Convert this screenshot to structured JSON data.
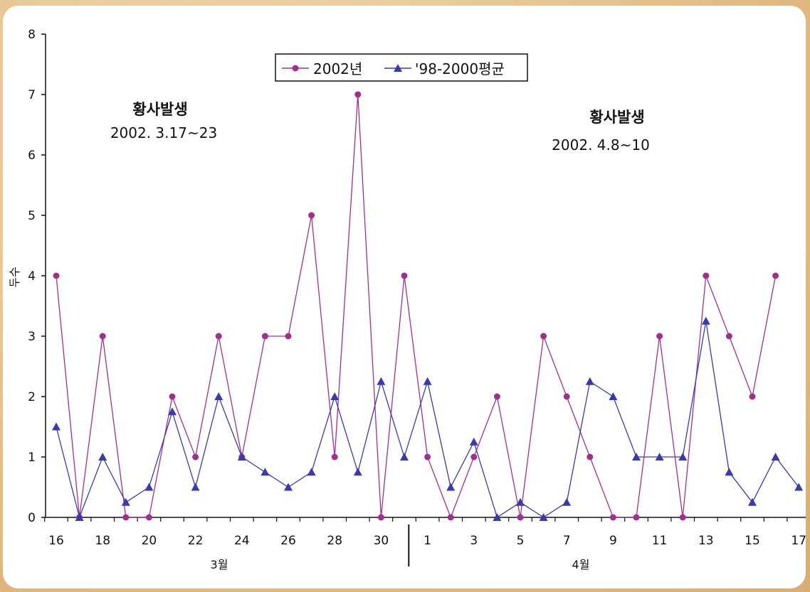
{
  "chart_data": {
    "type": "line",
    "ylabel": "두수",
    "ylim": [
      0,
      8
    ],
    "yticks": [
      "0",
      "1",
      "2",
      "3",
      "4",
      "5",
      "6",
      "7",
      "8"
    ],
    "x_tick_labels": [
      "16",
      "18",
      "20",
      "22",
      "24",
      "26",
      "28",
      "30",
      "1",
      "3",
      "5",
      "7",
      "9",
      "11",
      "13",
      "15",
      "17"
    ],
    "x_days": [
      "16",
      "17",
      "18",
      "19",
      "20",
      "21",
      "22",
      "23",
      "24",
      "25",
      "26",
      "27",
      "28",
      "29",
      "30",
      "31",
      "1",
      "2",
      "3",
      "4",
      "5",
      "6",
      "7",
      "8",
      "9",
      "10",
      "11",
      "12",
      "13",
      "14",
      "15",
      "16",
      "17"
    ],
    "month_labels": [
      "3월",
      "4월"
    ],
    "month_split_after_index": 15,
    "series": [
      {
        "name": "2002년",
        "color": "#a0308e",
        "marker": "circle",
        "values": [
          4,
          0,
          3,
          0,
          0,
          2,
          1,
          3,
          1,
          3,
          3,
          5,
          1,
          7,
          0,
          4,
          1,
          0,
          1,
          2,
          0,
          3,
          2,
          1,
          0,
          0,
          3,
          0,
          4,
          3,
          2,
          4,
          null
        ]
      },
      {
        "name": "'98-2000평균",
        "color": "#3a3ab0",
        "marker": "triangle",
        "values": [
          1.5,
          0,
          1,
          0.25,
          0.5,
          1.75,
          0.5,
          2,
          1,
          0.75,
          0.5,
          0.75,
          2,
          0.75,
          2.25,
          1,
          2.25,
          0.5,
          1.25,
          0,
          0.25,
          0,
          0.25,
          2.25,
          2,
          1,
          1,
          1,
          3.25,
          0.75,
          0.25,
          1,
          0.5
        ]
      }
    ],
    "annotations": [
      {
        "title": "황사발생",
        "date": "2002. 3.17~23"
      },
      {
        "title": "황사발생",
        "date": "2002. 4.8~10"
      }
    ],
    "legend_position": "top-center",
    "grid": false
  }
}
